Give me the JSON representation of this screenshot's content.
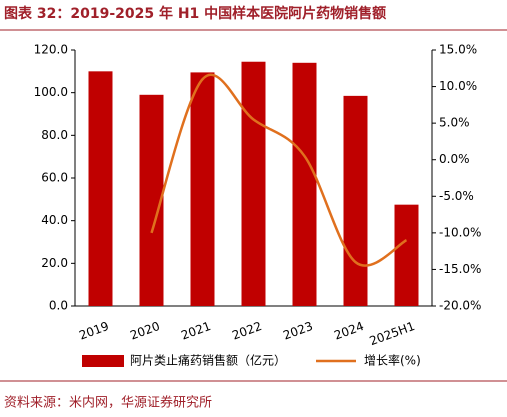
{
  "chart_data": {
    "type": "bar",
    "title": "图表 32：2019-2025 年 H1 中国样本医院阿片药物销售额",
    "categories": [
      "2019",
      "2020",
      "2021",
      "2022",
      "2023",
      "2024",
      "2025H1"
    ],
    "series": [
      {
        "name": "阿片类止痛药销售额（亿元）",
        "type": "bar",
        "color": "#c00000",
        "values": [
          110,
          99,
          109.5,
          114.5,
          114,
          98.5,
          47.5
        ]
      },
      {
        "name": "增长率(%)",
        "type": "line",
        "axis": "y2",
        "color": "#e0701e",
        "values": [
          null,
          -10,
          11,
          5.5,
          0.5,
          -14,
          -11
        ]
      }
    ],
    "ylim": [
      0,
      120
    ],
    "yticks": [
      {
        "value": 0,
        "label": "0.0"
      },
      {
        "value": 20,
        "label": "20.0"
      },
      {
        "value": 40,
        "label": "40.0"
      },
      {
        "value": 60,
        "label": "60.0"
      },
      {
        "value": 80,
        "label": "80.0"
      },
      {
        "value": 100,
        "label": "100.0"
      },
      {
        "value": 120,
        "label": "120.0"
      }
    ],
    "y2lim": [
      -20,
      15
    ],
    "y2ticks": [
      {
        "value": -20,
        "label": "-20.0%"
      },
      {
        "value": -15,
        "label": "-15.0%"
      },
      {
        "value": -10,
        "label": "-10.0%"
      },
      {
        "value": -5,
        "label": "-5.0%"
      },
      {
        "value": 0,
        "label": "0.0%"
      },
      {
        "value": 5,
        "label": "5.0%"
      },
      {
        "value": 10,
        "label": "10.0%"
      },
      {
        "value": 15,
        "label": "15.0%"
      }
    ],
    "source": "资料来源：米内网，华源证券研究所"
  }
}
